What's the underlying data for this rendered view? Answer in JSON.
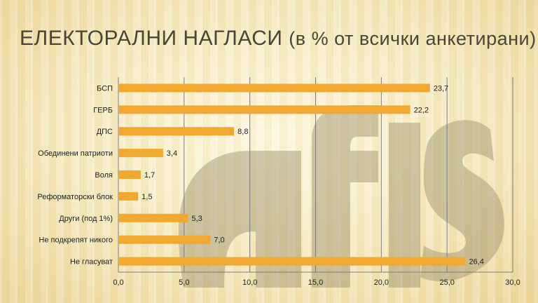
{
  "title": {
    "main": "ЕЛЕКТОРАЛНИ НАГЛАСИ",
    "sub": "(в % от всички анкетирани)"
  },
  "watermark": {
    "logo_text": "afis"
  },
  "colors": {
    "bar": "#f0a830",
    "title": "#4a4535",
    "grid": "#7d7d7d",
    "watermark": "#9a8f6a"
  },
  "chart_data": {
    "type": "bar",
    "orientation": "horizontal",
    "title": "ЕЛЕКТОРАЛНИ НАГЛАСИ (в % от всички анкетирани)",
    "categories": [
      "БСП",
      "ГЕРБ",
      "ДПС",
      "Обединени патриоти",
      "Воля",
      "Реформаторски блок",
      "Други (под 1%)",
      "Не подкрепят никого",
      "Не гласуват"
    ],
    "values": [
      23.7,
      22.2,
      8.8,
      3.4,
      1.7,
      1.5,
      5.3,
      7.0,
      26.4
    ],
    "value_labels": [
      "23,7",
      "22,2",
      "8,8",
      "3,4",
      "1,7",
      "1,5",
      "5,3",
      "7,0",
      "26,4"
    ],
    "xlim": [
      0,
      30
    ],
    "xticks": [
      "0,0",
      "5,0",
      "10,0",
      "15,0",
      "20,0",
      "25,0",
      "30,0"
    ],
    "xlabel": "",
    "ylabel": "",
    "grid": true,
    "legend": "none"
  }
}
